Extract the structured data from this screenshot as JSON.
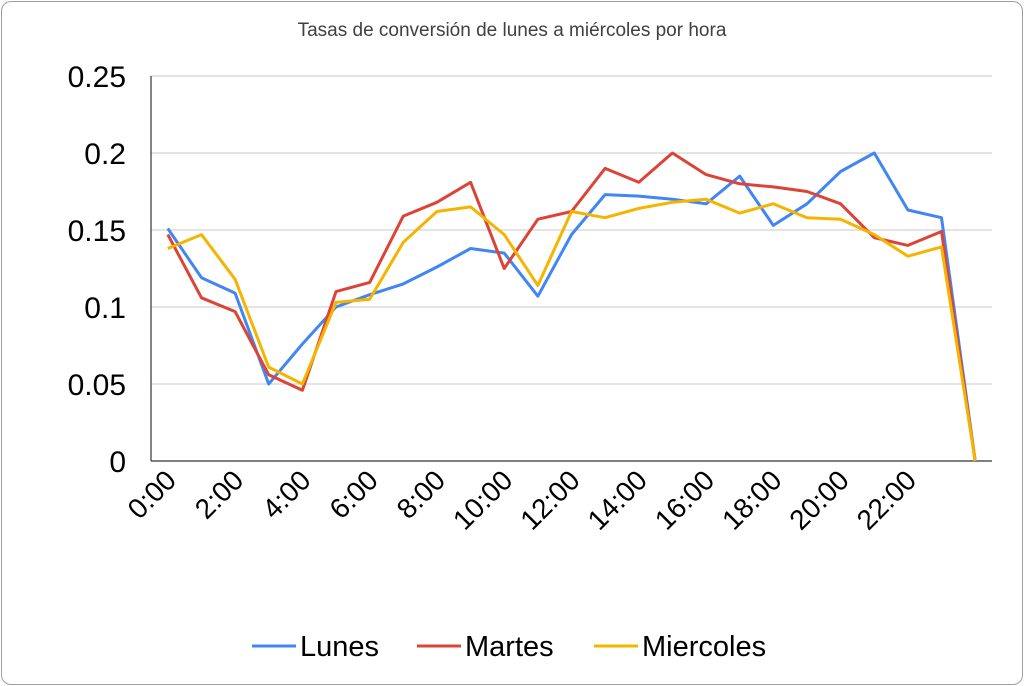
{
  "chart_data": {
    "type": "line",
    "title": "Tasas de conversión de lunes a miércoles por hora",
    "xlabel": "",
    "ylabel": "",
    "ylim": [
      0,
      0.25
    ],
    "yticks": [
      "0",
      "0.05",
      "0.1",
      "0.15",
      "0.2",
      "0.25"
    ],
    "x": [
      "0:00",
      "1:00",
      "2:00",
      "3:00",
      "4:00",
      "5:00",
      "6:00",
      "7:00",
      "8:00",
      "9:00",
      "10:00",
      "11:00",
      "12:00",
      "13:00",
      "14:00",
      "15:00",
      "16:00",
      "17:00",
      "18:00",
      "19:00",
      "20:00",
      "21:00",
      "22:00",
      "23:00",
      "24:00"
    ],
    "xtick_labels": [
      "0:00",
      "2:00",
      "4:00",
      "6:00",
      "8:00",
      "10:00",
      "12:00",
      "14:00",
      "16:00",
      "18:00",
      "20:00",
      "22:00"
    ],
    "grid": true,
    "legend_position": "bottom",
    "series": [
      {
        "name": "Lunes",
        "color": "#4285f4",
        "values": [
          0.151,
          0.119,
          0.109,
          0.05,
          0.076,
          0.1,
          0.108,
          0.115,
          0.126,
          0.138,
          0.135,
          0.107,
          0.147,
          0.173,
          0.172,
          0.17,
          0.167,
          0.185,
          0.153,
          0.167,
          0.188,
          0.2,
          0.163,
          0.158,
          0.0
        ]
      },
      {
        "name": "Martes",
        "color": "#db4437",
        "values": [
          0.147,
          0.106,
          0.097,
          0.056,
          0.046,
          0.11,
          0.116,
          0.159,
          0.168,
          0.181,
          0.125,
          0.157,
          0.162,
          0.19,
          0.181,
          0.2,
          0.186,
          0.18,
          0.178,
          0.175,
          0.167,
          0.145,
          0.14,
          0.149,
          0.0
        ]
      },
      {
        "name": "Miercoles",
        "color": "#f4b400",
        "values": [
          0.138,
          0.147,
          0.118,
          0.061,
          0.05,
          0.103,
          0.105,
          0.142,
          0.162,
          0.165,
          0.147,
          0.114,
          0.162,
          0.158,
          0.164,
          0.168,
          0.17,
          0.161,
          0.167,
          0.158,
          0.157,
          0.147,
          0.133,
          0.139,
          0.0
        ]
      }
    ]
  }
}
